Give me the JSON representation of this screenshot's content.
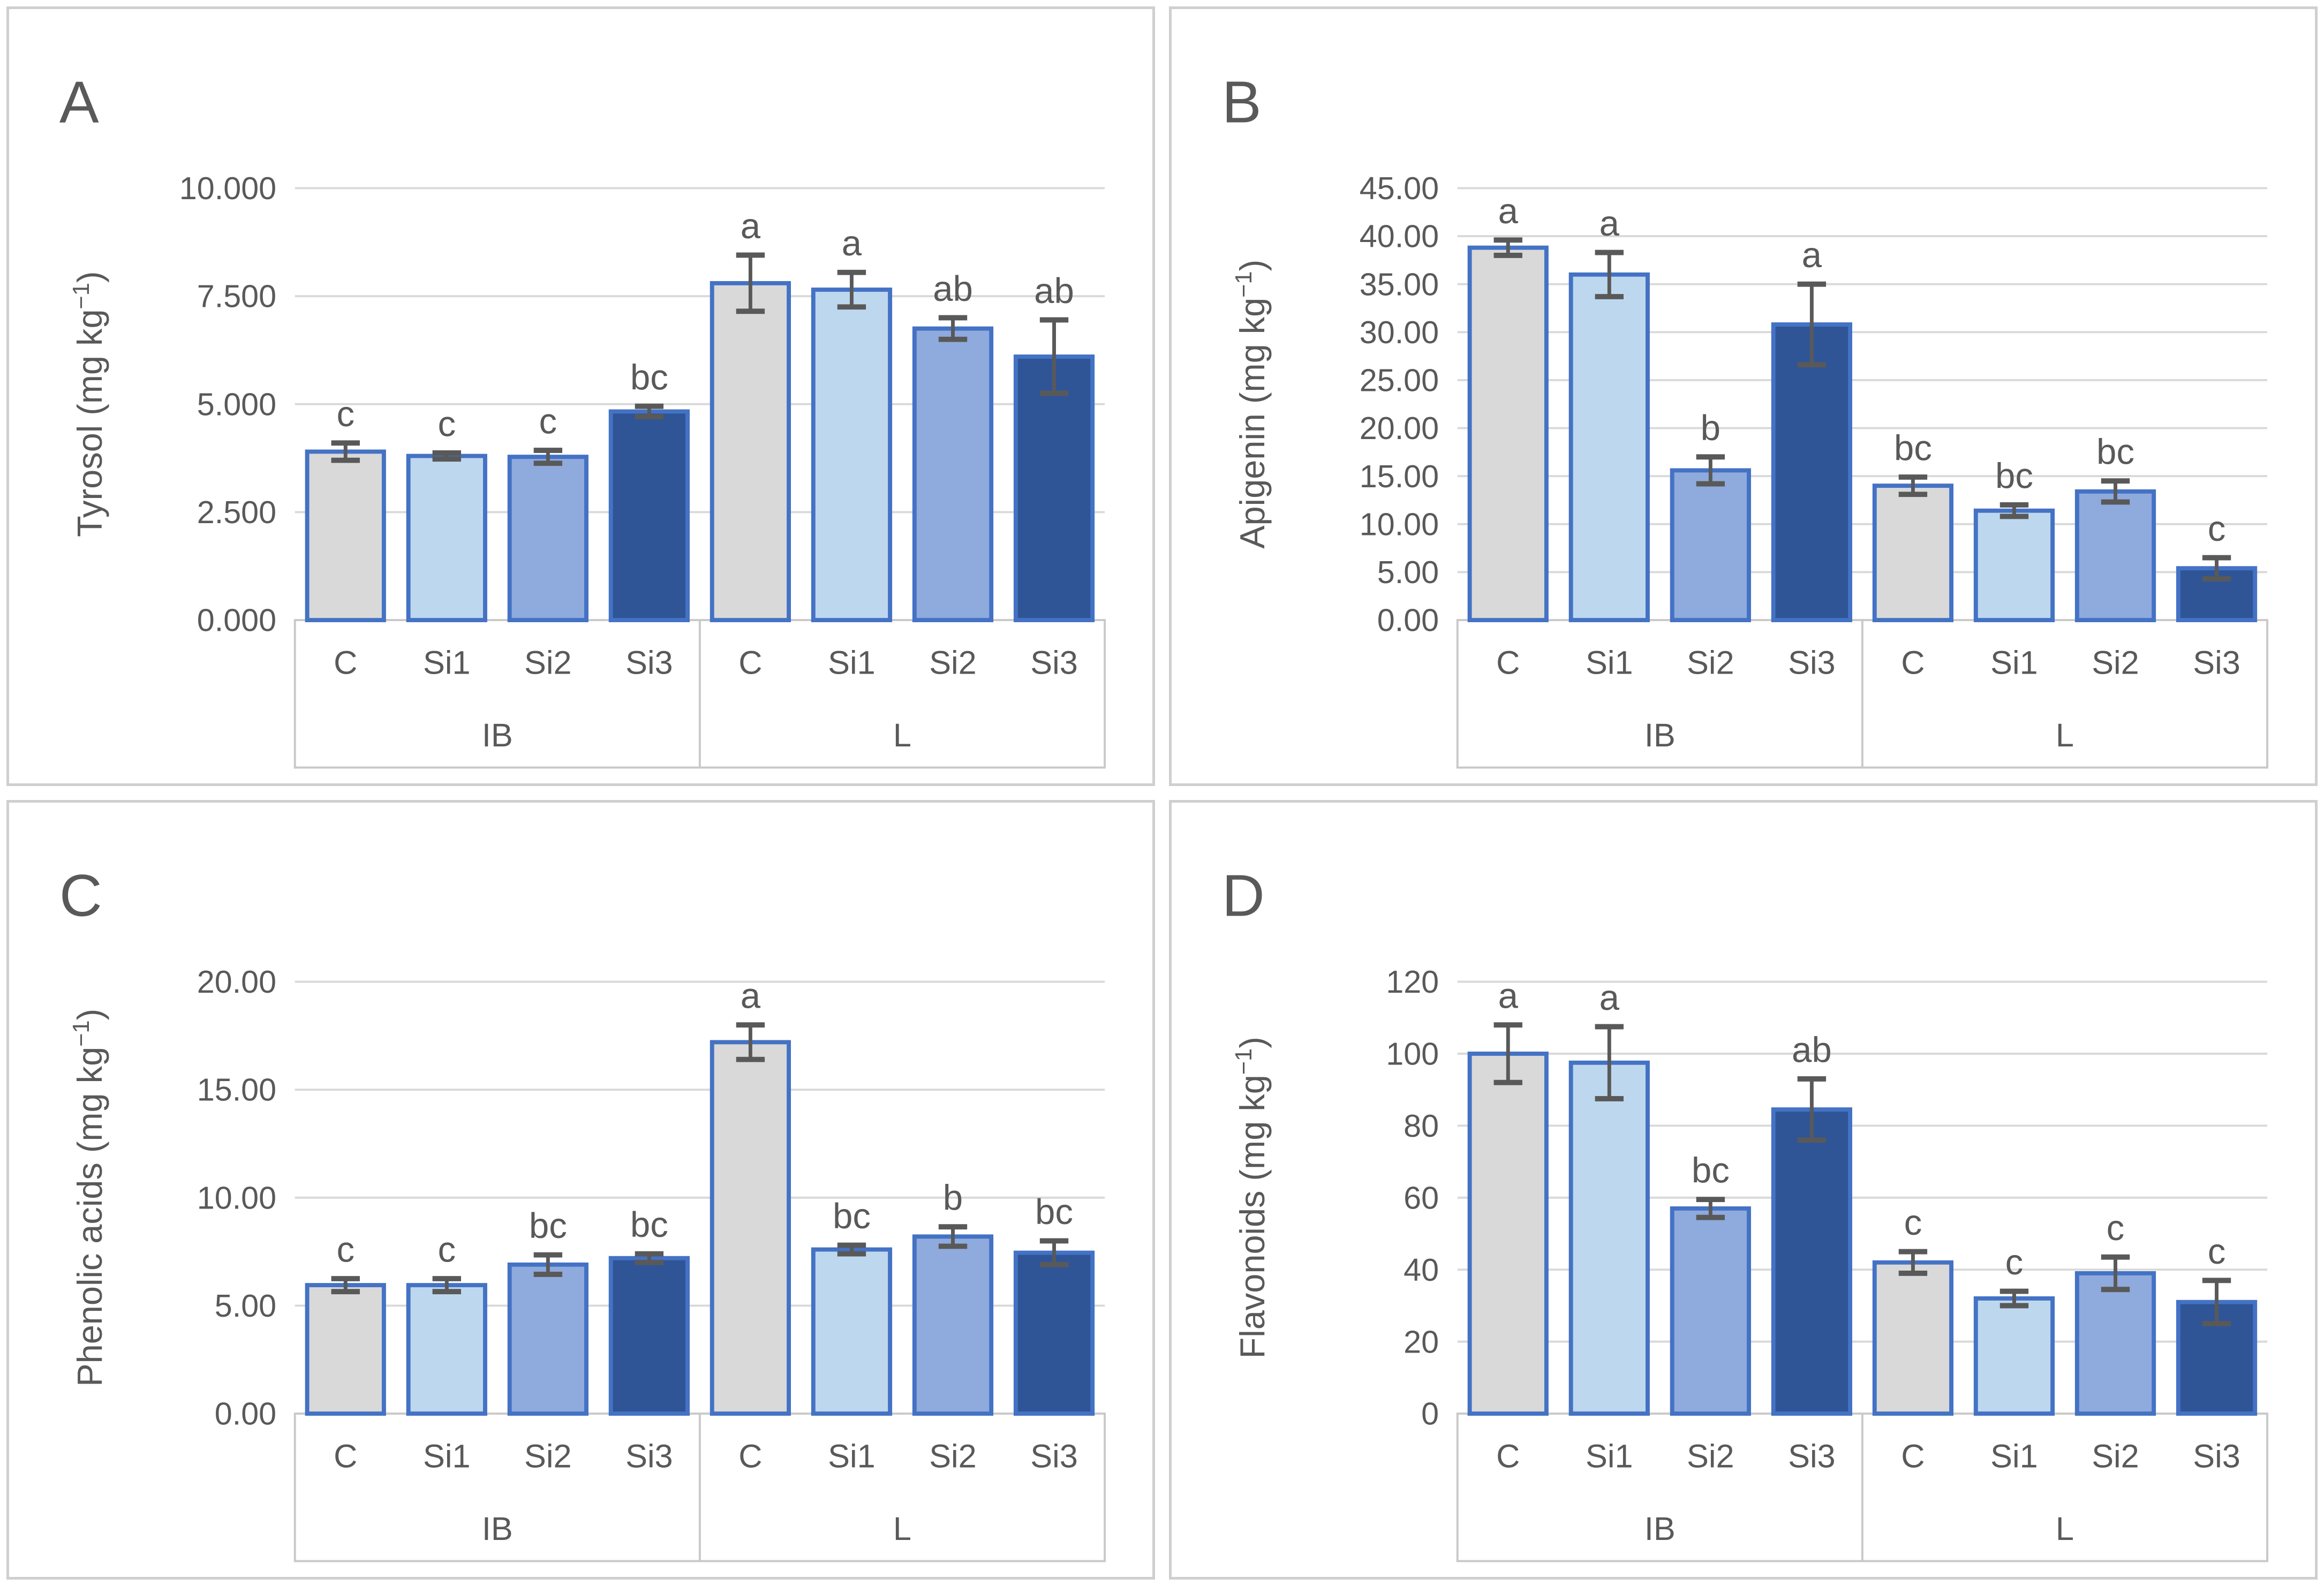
{
  "figure_title": "",
  "style": {
    "bar_border": "#4472C4",
    "bar_fills": {
      "C": "#D9D9D9",
      "Si1": "#BDD7EE",
      "Si2": "#8FAADC",
      "Si3": "#2F5597"
    },
    "error_bar_color": "#595959",
    "gridline_color": "#D9D9D9",
    "category_box_border": "#C9C9C9",
    "text_color": "#595959",
    "background": "#FFFFFF"
  },
  "chart_data": [
    {
      "panel": "A",
      "type": "bar",
      "title": "",
      "xlabel": "",
      "ylabel": "Tyrosol (mg kg⁻¹)",
      "ylim": [
        0,
        10
      ],
      "ytick_labels": [
        "0.000",
        "2.500",
        "5.000",
        "7.500",
        "10.000"
      ],
      "grid": true,
      "legend": "none",
      "categories": [
        "C",
        "Si1",
        "Si2",
        "Si3"
      ],
      "groups": [
        {
          "label": "IB",
          "bars": [
            {
              "category": "C",
              "value": 3.9,
              "error": 0.2,
              "letter": "c"
            },
            {
              "category": "Si1",
              "value": 3.8,
              "error": 0.07,
              "letter": "c"
            },
            {
              "category": "Si2",
              "value": 3.78,
              "error": 0.15,
              "letter": "c"
            },
            {
              "category": "Si3",
              "value": 4.83,
              "error": 0.12,
              "letter": "bc"
            }
          ]
        },
        {
          "label": "L",
          "bars": [
            {
              "category": "C",
              "value": 7.8,
              "error": 0.65,
              "letter": "a"
            },
            {
              "category": "Si1",
              "value": 7.65,
              "error": 0.4,
              "letter": "a"
            },
            {
              "category": "Si2",
              "value": 6.75,
              "error": 0.25,
              "letter": "ab"
            },
            {
              "category": "Si3",
              "value": 6.1,
              "error": 0.85,
              "letter": "ab"
            }
          ]
        }
      ]
    },
    {
      "panel": "B",
      "type": "bar",
      "title": "",
      "xlabel": "",
      "ylabel": "Apigenin (mg kg⁻¹)",
      "ylim": [
        0,
        45
      ],
      "ytick_labels": [
        "0.00",
        "5.00",
        "10.00",
        "15.00",
        "20.00",
        "25.00",
        "30.00",
        "35.00",
        "40.00",
        "45.00"
      ],
      "grid": true,
      "legend": "none",
      "categories": [
        "C",
        "Si1",
        "Si2",
        "Si3"
      ],
      "groups": [
        {
          "label": "IB",
          "bars": [
            {
              "category": "C",
              "value": 38.8,
              "error": 0.8,
              "letter": "a"
            },
            {
              "category": "Si1",
              "value": 36.0,
              "error": 2.3,
              "letter": "a"
            },
            {
              "category": "Si2",
              "value": 15.6,
              "error": 1.4,
              "letter": "b"
            },
            {
              "category": "Si3",
              "value": 30.8,
              "error": 4.2,
              "letter": "a"
            }
          ]
        },
        {
          "label": "L",
          "bars": [
            {
              "category": "C",
              "value": 14.0,
              "error": 0.9,
              "letter": "bc"
            },
            {
              "category": "Si1",
              "value": 11.4,
              "error": 0.6,
              "letter": "bc"
            },
            {
              "category": "Si2",
              "value": 13.4,
              "error": 1.1,
              "letter": "bc"
            },
            {
              "category": "Si3",
              "value": 5.4,
              "error": 1.1,
              "letter": "c"
            }
          ]
        }
      ]
    },
    {
      "panel": "C",
      "type": "bar",
      "title": "",
      "xlabel": "",
      "ylabel": "Phenolic acids (mg kg⁻¹)",
      "ylim": [
        0,
        20
      ],
      "ytick_labels": [
        "0.00",
        "5.00",
        "10.00",
        "15.00",
        "20.00"
      ],
      "grid": true,
      "legend": "none",
      "categories": [
        "C",
        "Si1",
        "Si2",
        "Si3"
      ],
      "groups": [
        {
          "label": "IB",
          "bars": [
            {
              "category": "C",
              "value": 5.95,
              "error": 0.3,
              "letter": "c"
            },
            {
              "category": "Si1",
              "value": 5.95,
              "error": 0.3,
              "letter": "c"
            },
            {
              "category": "Si2",
              "value": 6.9,
              "error": 0.45,
              "letter": "bc"
            },
            {
              "category": "Si3",
              "value": 7.2,
              "error": 0.2,
              "letter": "bc"
            }
          ]
        },
        {
          "label": "L",
          "bars": [
            {
              "category": "C",
              "value": 17.2,
              "error": 0.8,
              "letter": "a"
            },
            {
              "category": "Si1",
              "value": 7.6,
              "error": 0.2,
              "letter": "bc"
            },
            {
              "category": "Si2",
              "value": 8.2,
              "error": 0.45,
              "letter": "b"
            },
            {
              "category": "Si3",
              "value": 7.45,
              "error": 0.55,
              "letter": "bc"
            }
          ]
        }
      ]
    },
    {
      "panel": "D",
      "type": "bar",
      "title": "",
      "xlabel": "",
      "ylabel": "Flavonoids (mg kg⁻¹)",
      "ylim": [
        0,
        120
      ],
      "ytick_labels": [
        "0",
        "20",
        "40",
        "60",
        "80",
        "100",
        "120"
      ],
      "grid": true,
      "legend": "none",
      "categories": [
        "C",
        "Si1",
        "Si2",
        "Si3"
      ],
      "groups": [
        {
          "label": "IB",
          "bars": [
            {
              "category": "C",
              "value": 100.0,
              "error": 8.0,
              "letter": "a"
            },
            {
              "category": "Si1",
              "value": 97.5,
              "error": 10.0,
              "letter": "a"
            },
            {
              "category": "Si2",
              "value": 57.0,
              "error": 2.5,
              "letter": "bc"
            },
            {
              "category": "Si3",
              "value": 84.5,
              "error": 8.5,
              "letter": "ab"
            }
          ]
        },
        {
          "label": "L",
          "bars": [
            {
              "category": "C",
              "value": 42.0,
              "error": 3.0,
              "letter": "c"
            },
            {
              "category": "Si1",
              "value": 32.0,
              "error": 2.0,
              "letter": "c"
            },
            {
              "category": "Si2",
              "value": 39.0,
              "error": 4.5,
              "letter": "c"
            },
            {
              "category": "Si3",
              "value": 31.0,
              "error": 6.0,
              "letter": "c"
            }
          ]
        }
      ]
    }
  ]
}
